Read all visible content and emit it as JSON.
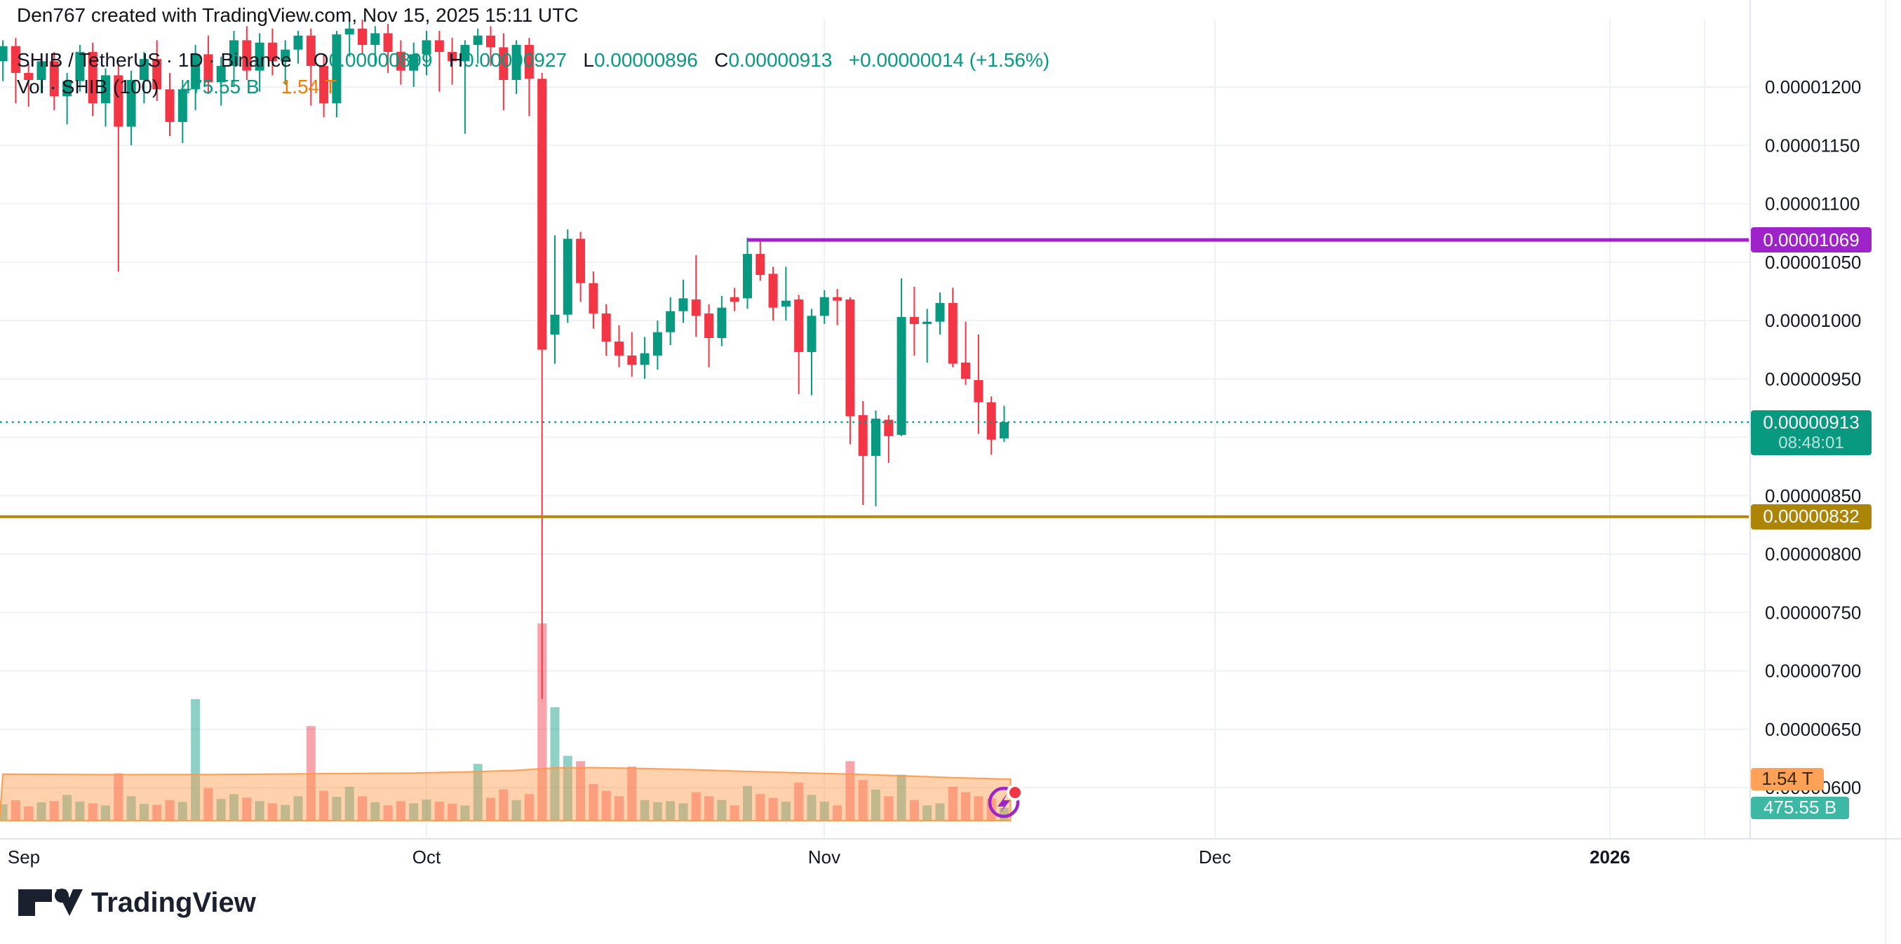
{
  "watermark": "Den767 created with TradingView.com, Nov 15, 2025 15:11 UTC",
  "header": {
    "symbol": "SHIB / TetherUS · 1D · Binance",
    "o_label": "O",
    "o_value": "0.00000899",
    "h_label": "H",
    "h_value": "0.00000927",
    "l_label": "L",
    "l_value": "0.00000896",
    "c_label": "C",
    "c_value": "0.00000913",
    "change": "+0.00000014 (+1.56%)",
    "volume_label": "Vol · SHIB (100)",
    "volume_value": "475.55 B",
    "volume_ma_value": "1.54 T"
  },
  "colors": {
    "up": "#089981",
    "down": "#f23645",
    "vol_up": "rgba(8,153,129,0.45)",
    "vol_down": "rgba(242,54,69,0.45)",
    "ma_area_fill": "rgba(255,152,72,0.45)",
    "ma_area_line": "rgba(255,152,72,0.95)",
    "grid": "#eef1f8",
    "axis_border": "#e0e3eb",
    "text": "#131722",
    "purple": "#9e24c9",
    "gold": "#b8860b",
    "gold_badge": "#ad8506",
    "current_badge": "#089981",
    "ma_badge_bg": "#ffa258",
    "ma_badge_text": "#3a2600",
    "vol_badge_bg": "#3cb8a5",
    "teal_text": "#089981",
    "orange_text": "#f57c00"
  },
  "chart_data": {
    "type": "candlestick_with_volume",
    "title": "SHIB / TetherUS · 1D · Binance",
    "price_unit": "1e-8 USDT (values below are price × 100,000,000)",
    "volume_unit": "billions of SHIB",
    "ylim_price": [
      590,
      1256
    ],
    "grid": true,
    "candles_format": [
      "date",
      "open",
      "high",
      "low",
      "close",
      "volume_B"
    ],
    "candles": [
      [
        "08-29",
        1222,
        1240,
        1205,
        1235,
        600
      ],
      [
        "08-30",
        1235,
        1242,
        1186,
        1212,
        750
      ],
      [
        "08-31",
        1212,
        1220,
        1183,
        1206,
        520
      ],
      [
        "09-01",
        1206,
        1228,
        1195,
        1222,
        680
      ],
      [
        "09-02",
        1222,
        1230,
        1180,
        1192,
        720
      ],
      [
        "09-03",
        1192,
        1212,
        1168,
        1205,
        950
      ],
      [
        "09-04",
        1205,
        1236,
        1196,
        1230,
        700
      ],
      [
        "09-05",
        1230,
        1238,
        1175,
        1186,
        640
      ],
      [
        "09-06",
        1186,
        1216,
        1166,
        1210,
        560
      ],
      [
        "09-07",
        1210,
        1218,
        1042,
        1166,
        1750
      ],
      [
        "09-08",
        1166,
        1214,
        1150,
        1206,
        900
      ],
      [
        "09-09",
        1206,
        1230,
        1186,
        1224,
        620
      ],
      [
        "09-10",
        1224,
        1240,
        1188,
        1198,
        580
      ],
      [
        "09-11",
        1198,
        1212,
        1158,
        1170,
        760
      ],
      [
        "09-12",
        1170,
        1206,
        1152,
        1198,
        690
      ],
      [
        "09-13",
        1198,
        1236,
        1180,
        1228,
        4500
      ],
      [
        "09-14",
        1228,
        1244,
        1194,
        1204,
        1200
      ],
      [
        "09-15",
        1204,
        1226,
        1184,
        1218,
        800
      ],
      [
        "09-16",
        1218,
        1248,
        1200,
        1240,
        980
      ],
      [
        "09-17",
        1240,
        1252,
        1206,
        1214,
        850
      ],
      [
        "09-18",
        1214,
        1246,
        1196,
        1238,
        720
      ],
      [
        "09-19",
        1238,
        1250,
        1210,
        1222,
        640
      ],
      [
        "09-20",
        1222,
        1240,
        1202,
        1232,
        580
      ],
      [
        "09-21",
        1232,
        1248,
        1220,
        1244,
        900
      ],
      [
        "09-22",
        1244,
        1250,
        1184,
        1218,
        3500
      ],
      [
        "09-23",
        1218,
        1228,
        1174,
        1186,
        1100
      ],
      [
        "09-24",
        1186,
        1248,
        1174,
        1245,
        880
      ],
      [
        "09-25",
        1245,
        1258,
        1226,
        1250,
        1250
      ],
      [
        "09-26",
        1250,
        1260,
        1228,
        1236,
        900
      ],
      [
        "09-27",
        1236,
        1252,
        1218,
        1246,
        680
      ],
      [
        "09-28",
        1246,
        1254,
        1212,
        1230,
        560
      ],
      [
        "09-29",
        1230,
        1240,
        1202,
        1214,
        720
      ],
      [
        "09-30",
        1214,
        1238,
        1200,
        1228,
        640
      ],
      [
        "10-01",
        1228,
        1248,
        1210,
        1240,
        780
      ],
      [
        "10-02",
        1240,
        1248,
        1196,
        1230,
        700
      ],
      [
        "10-03",
        1230,
        1242,
        1202,
        1222,
        620
      ],
      [
        "10-04",
        1222,
        1240,
        1160,
        1236,
        560
      ],
      [
        "10-05",
        1236,
        1250,
        1220,
        1244,
        2100
      ],
      [
        "10-06",
        1244,
        1252,
        1218,
        1234,
        840
      ],
      [
        "10-07",
        1234,
        1246,
        1180,
        1206,
        1150
      ],
      [
        "10-08",
        1206,
        1240,
        1194,
        1236,
        760
      ],
      [
        "10-09",
        1236,
        1242,
        1175,
        1207,
        980
      ],
      [
        "10-10",
        1207,
        1212,
        676,
        975,
        7300
      ],
      [
        "10-11",
        988,
        1073,
        963,
        1005,
        4200
      ],
      [
        "10-12",
        1005,
        1078,
        998,
        1070,
        2400
      ],
      [
        "10-13",
        1070,
        1076,
        1016,
        1032,
        2200
      ],
      [
        "10-14",
        1032,
        1042,
        993,
        1006,
        1350
      ],
      [
        "10-15",
        1006,
        1014,
        970,
        982,
        1100
      ],
      [
        "10-16",
        982,
        996,
        960,
        970,
        900
      ],
      [
        "10-17",
        970,
        990,
        952,
        962,
        2000
      ],
      [
        "10-18",
        962,
        986,
        950,
        972,
        760
      ],
      [
        "10-19",
        970,
        1000,
        958,
        990,
        680
      ],
      [
        "10-20",
        990,
        1020,
        979,
        1008,
        720
      ],
      [
        "10-21",
        1008,
        1035,
        998,
        1019,
        640
      ],
      [
        "10-22",
        1018,
        1056,
        986,
        1004,
        1050
      ],
      [
        "10-23",
        1006,
        1014,
        960,
        985,
        900
      ],
      [
        "10-24",
        985,
        1021,
        978,
        1011,
        760
      ],
      [
        "10-25",
        1020,
        1028,
        1008,
        1016,
        560
      ],
      [
        "10-26",
        1019,
        1071,
        1010,
        1057,
        1280
      ],
      [
        "10-27",
        1057,
        1069,
        1034,
        1039,
        980
      ],
      [
        "10-28",
        1040,
        1046,
        1000,
        1011,
        840
      ],
      [
        "10-29",
        1012,
        1046,
        1000,
        1017,
        700
      ],
      [
        "10-30",
        1018,
        1022,
        937,
        973,
        1400
      ],
      [
        "10-31",
        973,
        1010,
        936,
        1004,
        950
      ],
      [
        "11-01",
        1004,
        1026,
        997,
        1020,
        700
      ],
      [
        "11-02",
        1020,
        1027,
        996,
        1017,
        560
      ],
      [
        "11-03",
        1018,
        1020,
        894,
        918,
        2200
      ],
      [
        "11-04",
        919,
        931,
        842,
        884,
        1500
      ],
      [
        "11-05",
        884,
        923,
        841,
        916,
        1150
      ],
      [
        "11-06",
        915,
        919,
        878,
        901,
        900
      ],
      [
        "11-07",
        902,
        1036,
        901,
        1003,
        1700
      ],
      [
        "11-08",
        1003,
        1029,
        970,
        997,
        760
      ],
      [
        "11-09",
        997,
        1010,
        964,
        999,
        560
      ],
      [
        "11-10",
        999,
        1024,
        988,
        1015,
        640
      ],
      [
        "11-11",
        1015,
        1028,
        960,
        963,
        1250
      ],
      [
        "11-12",
        964,
        999,
        945,
        950,
        1050
      ],
      [
        "11-13",
        949,
        988,
        903,
        930,
        900
      ],
      [
        "11-14",
        930,
        935,
        885,
        898,
        820
      ],
      [
        "11-15",
        899,
        927,
        896,
        913,
        475.55
      ]
    ],
    "volume_ma_points": [
      [
        0,
        1720
      ],
      [
        8,
        1700
      ],
      [
        16,
        1705
      ],
      [
        24,
        1735
      ],
      [
        32,
        1760
      ],
      [
        36,
        1800
      ],
      [
        40,
        1860
      ],
      [
        43,
        1950
      ],
      [
        46,
        1960
      ],
      [
        50,
        1930
      ],
      [
        54,
        1880
      ],
      [
        58,
        1820
      ],
      [
        62,
        1770
      ],
      [
        66,
        1720
      ],
      [
        70,
        1660
      ],
      [
        74,
        1590
      ],
      [
        78,
        1540
      ]
    ],
    "levels": {
      "resistance": {
        "label": "0.00001069",
        "price": 1069,
        "starts_at_index": 58
      },
      "support": {
        "label": "0.00000832",
        "price": 832
      },
      "current": {
        "label": "0.00000913",
        "price": 913,
        "countdown": "08:48:01"
      },
      "volume_ma_badge": {
        "label": "1.54 T",
        "value_B": 1540
      },
      "volume_badge": {
        "label": "475.55 B",
        "value_B": 475.55
      }
    },
    "y_ticks": [
      "0.00001200",
      "0.00001150",
      "0.00001100",
      "0.00001050",
      "0.00001000",
      "0.00000950",
      "0.00000900",
      "0.00000850",
      "0.00000800",
      "0.00000750",
      "0.00000700",
      "0.00000650",
      "0.00000600"
    ],
    "x_ticks": [
      {
        "label": "Sep",
        "x": 34,
        "grid": false,
        "bold": false
      },
      {
        "label": "Oct",
        "x": 608,
        "grid": true,
        "bold": false
      },
      {
        "label": "Nov",
        "x": 1175,
        "grid": true,
        "bold": false
      },
      {
        "label": "Dec",
        "x": 1732,
        "grid": true,
        "bold": false
      },
      {
        "label": "2026",
        "x": 2295,
        "grid": true,
        "bold": true
      }
    ],
    "extra_grid_x": [
      2430
    ],
    "legend_position": "top-left"
  },
  "logo": {
    "text": "TradingView"
  }
}
